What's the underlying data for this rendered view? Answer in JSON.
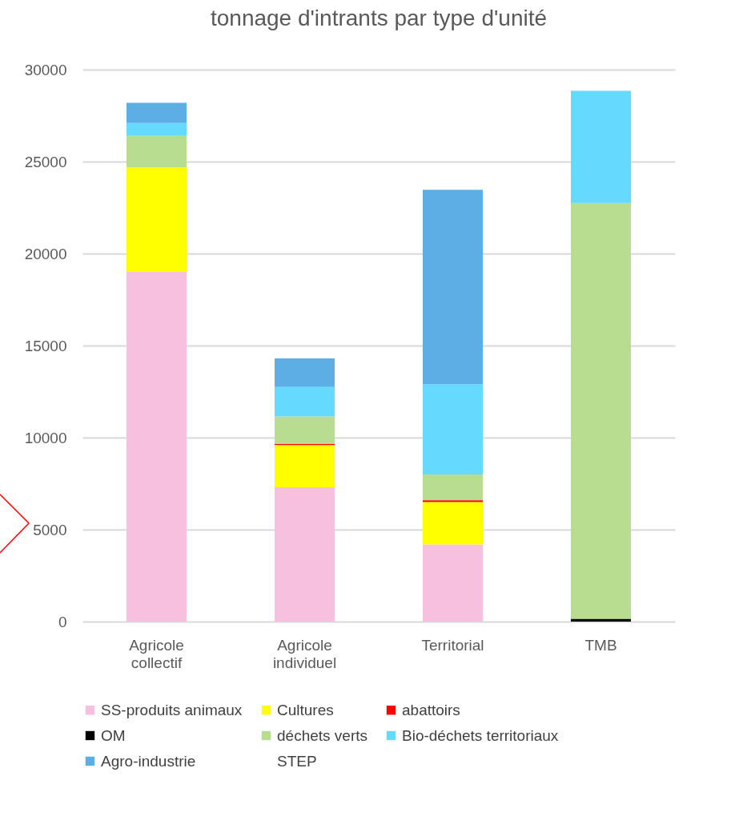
{
  "chart_data": {
    "type": "bar",
    "title": "tonnage d'intrants par type d'unité",
    "stacked": true,
    "categories": [
      "Agricole collectif",
      "Agricole individuel",
      "Territorial",
      "TMB"
    ],
    "series": [
      {
        "name": "SS-produits animaux",
        "color": "#f7c0de",
        "values": [
          19000,
          7300,
          4200,
          0
        ]
      },
      {
        "name": "Cultures",
        "color": "#ffff00",
        "values": [
          5700,
          2300,
          2300,
          0
        ]
      },
      {
        "name": "abattoirs",
        "color": "#ff0000",
        "values": [
          0,
          50,
          100,
          0
        ]
      },
      {
        "name": "OM",
        "color": "#000000",
        "values": [
          0,
          0,
          0,
          150
        ]
      },
      {
        "name": "déchets verts",
        "color": "#b8dc90",
        "values": [
          1700,
          1500,
          1400,
          22600
        ]
      },
      {
        "name": "Bio-déchets territoriaux",
        "color": "#66d9ff",
        "values": [
          700,
          1600,
          4900,
          6100
        ]
      },
      {
        "name": "Agro-industrie",
        "color": "#5eaee6",
        "values": [
          1100,
          1550,
          10570,
          0
        ]
      },
      {
        "name": "STEP",
        "values": [
          0,
          0,
          0,
          0
        ]
      }
    ],
    "ylim": [
      0,
      30000
    ],
    "yticks": [
      0,
      5000,
      10000,
      15000,
      20000,
      25000,
      30000
    ],
    "grid": "y",
    "legend": "bottom"
  }
}
